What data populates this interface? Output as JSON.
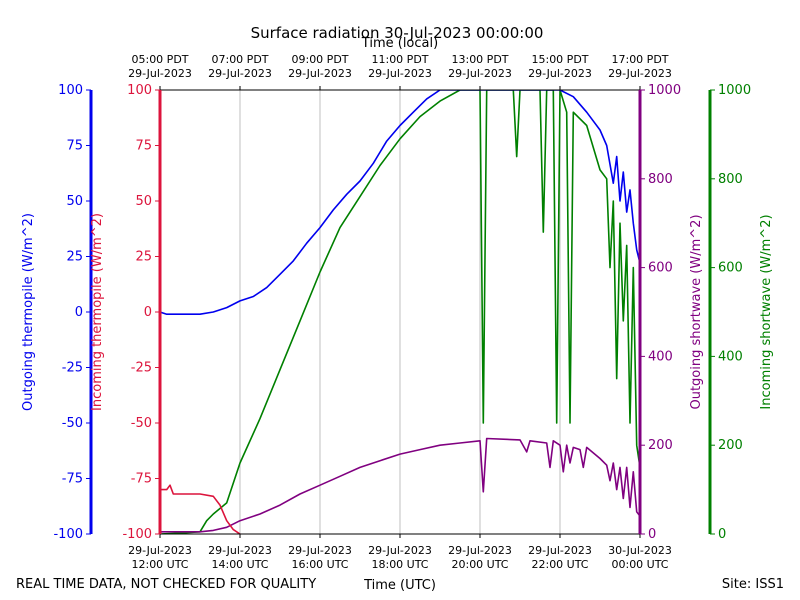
{
  "title": "Surface radiation 30-Jul-2023 00:00:00",
  "footer_left": "REAL TIME DATA, NOT CHECKED FOR QUALITY",
  "footer_right": "Site: ISS1",
  "colors": {
    "outgoing_thermopile": "#0000ee",
    "incoming_thermopile": "#dc143c",
    "outgoing_shortwave": "#800080",
    "incoming_shortwave": "#008000",
    "grid": "#b0b0b0"
  },
  "chart_data": {
    "type": "line",
    "x_axis_bottom": {
      "label": "Time (UTC)",
      "range_utc": [
        "2023-07-29 12:00",
        "2023-07-30 00:00"
      ],
      "ticks": [
        {
          "time": "2023-07-29 12:00",
          "line1": "29-Jul-2023",
          "line2": "12:00 UTC"
        },
        {
          "time": "2023-07-29 14:00",
          "line1": "29-Jul-2023",
          "line2": "14:00 UTC"
        },
        {
          "time": "2023-07-29 16:00",
          "line1": "29-Jul-2023",
          "line2": "16:00 UTC"
        },
        {
          "time": "2023-07-29 18:00",
          "line1": "29-Jul-2023",
          "line2": "18:00 UTC"
        },
        {
          "time": "2023-07-29 20:00",
          "line1": "29-Jul-2023",
          "line2": "20:00 UTC"
        },
        {
          "time": "2023-07-29 22:00",
          "line1": "29-Jul-2023",
          "line2": "22:00 UTC"
        },
        {
          "time": "2023-07-30 00:00",
          "line1": "30-Jul-2023",
          "line2": "00:00 UTC"
        }
      ]
    },
    "x_axis_top": {
      "label": "Time (local)",
      "ticks": [
        {
          "time": "2023-07-29 12:00",
          "line1": "05:00 PDT",
          "line2": "29-Jul-2023"
        },
        {
          "time": "2023-07-29 14:00",
          "line1": "07:00 PDT",
          "line2": "29-Jul-2023"
        },
        {
          "time": "2023-07-29 16:00",
          "line1": "09:00 PDT",
          "line2": "29-Jul-2023"
        },
        {
          "time": "2023-07-29 18:00",
          "line1": "11:00 PDT",
          "line2": "29-Jul-2023"
        },
        {
          "time": "2023-07-29 20:00",
          "line1": "13:00 PDT",
          "line2": "29-Jul-2023"
        },
        {
          "time": "2023-07-29 22:00",
          "line1": "15:00 PDT",
          "line2": "29-Jul-2023"
        },
        {
          "time": "2023-07-30 00:00",
          "line1": "17:00 PDT",
          "line2": "29-Jul-2023"
        }
      ]
    },
    "y_axes": [
      {
        "id": "outgoing_thermopile",
        "label": "Outgoing thermopile (W/m^2)",
        "ylim": [
          -100,
          100
        ],
        "ticks": [
          -100,
          -75,
          -50,
          -25,
          0,
          25,
          50,
          75,
          100
        ]
      },
      {
        "id": "incoming_thermopile",
        "label": "Incoming thermopile (W/m^2)",
        "ylim": [
          -100,
          100
        ],
        "ticks": [
          -100,
          -75,
          -50,
          -25,
          0,
          25,
          50,
          75,
          100
        ]
      },
      {
        "id": "outgoing_shortwave",
        "label": "Outgoing shortwave (W/m^2)",
        "ylim": [
          0,
          1000
        ],
        "ticks": [
          0,
          200,
          400,
          600,
          800,
          1000
        ]
      },
      {
        "id": "incoming_shortwave",
        "label": "Incoming shortwave (W/m^2)",
        "ylim": [
          0,
          1000
        ],
        "ticks": [
          0,
          200,
          400,
          600,
          800,
          1000
        ]
      }
    ],
    "grid": "vertical",
    "series": [
      {
        "axis": "outgoing_thermopile",
        "points": [
          [
            "2023-07-29 12:00",
            0
          ],
          [
            "2023-07-29 12:10",
            -1
          ],
          [
            "2023-07-29 12:20",
            -1
          ],
          [
            "2023-07-29 12:40",
            -1
          ],
          [
            "2023-07-29 13:00",
            -1
          ],
          [
            "2023-07-29 13:20",
            0
          ],
          [
            "2023-07-29 13:40",
            2
          ],
          [
            "2023-07-29 14:00",
            5
          ],
          [
            "2023-07-29 14:20",
            7
          ],
          [
            "2023-07-29 14:40",
            11
          ],
          [
            "2023-07-29 15:00",
            17
          ],
          [
            "2023-07-29 15:20",
            23
          ],
          [
            "2023-07-29 15:40",
            31
          ],
          [
            "2023-07-29 16:00",
            38
          ],
          [
            "2023-07-29 16:20",
            46
          ],
          [
            "2023-07-29 16:40",
            53
          ],
          [
            "2023-07-29 17:00",
            59
          ],
          [
            "2023-07-29 17:20",
            67
          ],
          [
            "2023-07-29 17:40",
            77
          ],
          [
            "2023-07-29 18:00",
            84
          ],
          [
            "2023-07-29 18:20",
            90
          ],
          [
            "2023-07-29 18:40",
            96
          ],
          [
            "2023-07-29 19:00",
            100
          ],
          [
            "2023-07-29 20:00",
            100
          ],
          [
            "2023-07-29 21:00",
            100
          ],
          [
            "2023-07-29 22:00",
            100
          ],
          [
            "2023-07-29 22:20",
            97
          ],
          [
            "2023-07-29 22:40",
            90
          ],
          [
            "2023-07-29 23:00",
            82
          ],
          [
            "2023-07-29 23:10",
            75
          ],
          [
            "2023-07-29 23:20",
            58
          ],
          [
            "2023-07-29 23:25",
            70
          ],
          [
            "2023-07-29 23:30",
            50
          ],
          [
            "2023-07-29 23:35",
            63
          ],
          [
            "2023-07-29 23:40",
            45
          ],
          [
            "2023-07-29 23:45",
            55
          ],
          [
            "2023-07-29 23:50",
            40
          ],
          [
            "2023-07-29 23:55",
            28
          ],
          [
            "2023-07-30 00:00",
            22
          ]
        ]
      },
      {
        "axis": "incoming_thermopile",
        "points": [
          [
            "2023-07-29 12:00",
            -80
          ],
          [
            "2023-07-29 12:10",
            -80
          ],
          [
            "2023-07-29 12:15",
            -78
          ],
          [
            "2023-07-29 12:20",
            -82
          ],
          [
            "2023-07-29 12:40",
            -82
          ],
          [
            "2023-07-29 13:00",
            -82
          ],
          [
            "2023-07-29 13:20",
            -83
          ],
          [
            "2023-07-29 13:30",
            -87
          ],
          [
            "2023-07-29 13:40",
            -94
          ],
          [
            "2023-07-29 13:50",
            -98
          ],
          [
            "2023-07-29 14:00",
            -100
          ]
        ]
      },
      {
        "axis": "outgoing_shortwave",
        "points": [
          [
            "2023-07-29 12:00",
            5
          ],
          [
            "2023-07-29 12:30",
            5
          ],
          [
            "2023-07-29 13:00",
            5
          ],
          [
            "2023-07-29 13:20",
            8
          ],
          [
            "2023-07-29 13:40",
            15
          ],
          [
            "2023-07-29 14:00",
            30
          ],
          [
            "2023-07-29 14:30",
            45
          ],
          [
            "2023-07-29 15:00",
            65
          ],
          [
            "2023-07-29 15:30",
            90
          ],
          [
            "2023-07-29 16:00",
            110
          ],
          [
            "2023-07-29 16:30",
            130
          ],
          [
            "2023-07-29 17:00",
            150
          ],
          [
            "2023-07-29 17:30",
            165
          ],
          [
            "2023-07-29 18:00",
            180
          ],
          [
            "2023-07-29 18:30",
            190
          ],
          [
            "2023-07-29 19:00",
            200
          ],
          [
            "2023-07-29 19:30",
            205
          ],
          [
            "2023-07-29 20:00",
            210
          ],
          [
            "2023-07-29 20:05",
            95
          ],
          [
            "2023-07-29 20:10",
            215
          ],
          [
            "2023-07-29 21:00",
            212
          ],
          [
            "2023-07-29 21:10",
            185
          ],
          [
            "2023-07-29 21:15",
            210
          ],
          [
            "2023-07-29 21:40",
            205
          ],
          [
            "2023-07-29 21:45",
            150
          ],
          [
            "2023-07-29 21:50",
            210
          ],
          [
            "2023-07-29 22:00",
            200
          ],
          [
            "2023-07-29 22:05",
            140
          ],
          [
            "2023-07-29 22:10",
            200
          ],
          [
            "2023-07-29 22:15",
            160
          ],
          [
            "2023-07-29 22:20",
            195
          ],
          [
            "2023-07-29 22:30",
            190
          ],
          [
            "2023-07-29 22:35",
            150
          ],
          [
            "2023-07-29 22:40",
            195
          ],
          [
            "2023-07-29 23:00",
            170
          ],
          [
            "2023-07-29 23:10",
            155
          ],
          [
            "2023-07-29 23:15",
            120
          ],
          [
            "2023-07-29 23:20",
            160
          ],
          [
            "2023-07-29 23:25",
            100
          ],
          [
            "2023-07-29 23:30",
            150
          ],
          [
            "2023-07-29 23:35",
            80
          ],
          [
            "2023-07-29 23:40",
            150
          ],
          [
            "2023-07-29 23:45",
            60
          ],
          [
            "2023-07-29 23:50",
            140
          ],
          [
            "2023-07-29 23:55",
            50
          ],
          [
            "2023-07-30 00:00",
            40
          ]
        ]
      },
      {
        "axis": "incoming_shortwave",
        "points": [
          [
            "2023-07-29 12:00",
            0
          ],
          [
            "2023-07-29 12:30",
            2
          ],
          [
            "2023-07-29 13:00",
            5
          ],
          [
            "2023-07-29 13:10",
            30
          ],
          [
            "2023-07-29 13:20",
            45
          ],
          [
            "2023-07-29 13:40",
            70
          ],
          [
            "2023-07-29 14:00",
            160
          ],
          [
            "2023-07-29 14:30",
            260
          ],
          [
            "2023-07-29 15:00",
            370
          ],
          [
            "2023-07-29 15:30",
            480
          ],
          [
            "2023-07-29 16:00",
            590
          ],
          [
            "2023-07-29 16:30",
            690
          ],
          [
            "2023-07-29 17:00",
            760
          ],
          [
            "2023-07-29 17:30",
            830
          ],
          [
            "2023-07-29 18:00",
            890
          ],
          [
            "2023-07-29 18:30",
            940
          ],
          [
            "2023-07-29 19:00",
            975
          ],
          [
            "2023-07-29 19:30",
            1000
          ],
          [
            "2023-07-29 20:00",
            1000
          ],
          [
            "2023-07-29 20:05",
            250
          ],
          [
            "2023-07-29 20:10",
            1000
          ],
          [
            "2023-07-29 20:50",
            1000
          ],
          [
            "2023-07-29 20:55",
            850
          ],
          [
            "2023-07-29 21:00",
            1000
          ],
          [
            "2023-07-29 21:30",
            1000
          ],
          [
            "2023-07-29 21:35",
            680
          ],
          [
            "2023-07-29 21:40",
            1000
          ],
          [
            "2023-07-29 21:50",
            1000
          ],
          [
            "2023-07-29 21:55",
            250
          ],
          [
            "2023-07-29 22:00",
            1000
          ],
          [
            "2023-07-29 22:10",
            950
          ],
          [
            "2023-07-29 22:15",
            250
          ],
          [
            "2023-07-29 22:20",
            950
          ],
          [
            "2023-07-29 22:40",
            920
          ],
          [
            "2023-07-29 23:00",
            820
          ],
          [
            "2023-07-29 23:10",
            800
          ],
          [
            "2023-07-29 23:15",
            600
          ],
          [
            "2023-07-29 23:20",
            750
          ],
          [
            "2023-07-29 23:25",
            350
          ],
          [
            "2023-07-29 23:30",
            700
          ],
          [
            "2023-07-29 23:35",
            480
          ],
          [
            "2023-07-29 23:40",
            650
          ],
          [
            "2023-07-29 23:45",
            250
          ],
          [
            "2023-07-29 23:50",
            600
          ],
          [
            "2023-07-29 23:55",
            200
          ],
          [
            "2023-07-30 00:00",
            150
          ]
        ]
      }
    ]
  }
}
